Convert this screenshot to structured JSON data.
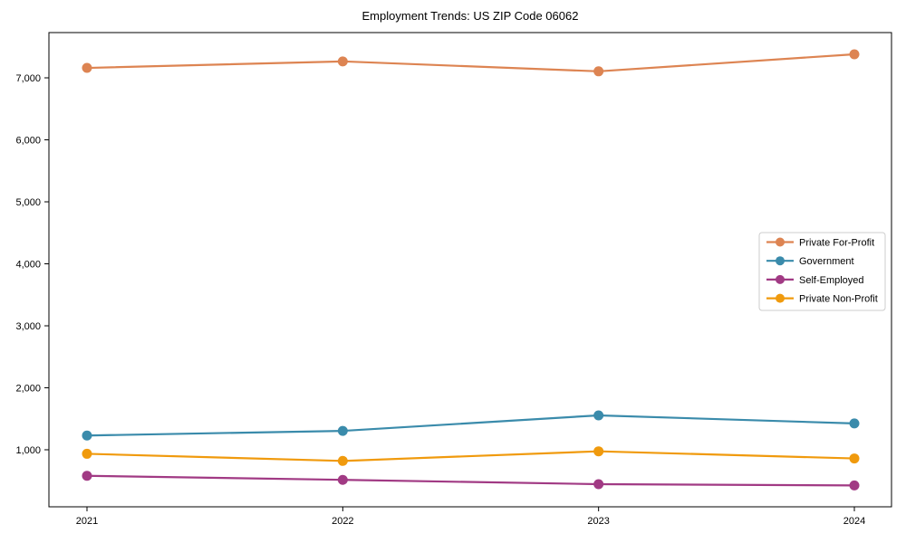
{
  "chart_data": {
    "type": "line",
    "title": "Employment Trends: US ZIP Code 06062",
    "xlabel": "",
    "ylabel": "",
    "categories": [
      "2021",
      "2022",
      "2023",
      "2024"
    ],
    "series": [
      {
        "name": "Private For-Profit",
        "color": "#dd8452",
        "values": [
          7160,
          7265,
          7105,
          7380
        ]
      },
      {
        "name": "Government",
        "color": "#3a8bab",
        "values": [
          1230,
          1305,
          1555,
          1425
        ]
      },
      {
        "name": "Self-Employed",
        "color": "#a13a84",
        "values": [
          580,
          515,
          445,
          425
        ]
      },
      {
        "name": "Private Non-Profit",
        "color": "#f09a0d",
        "values": [
          935,
          820,
          975,
          860
        ]
      }
    ],
    "yticks": [
      1000,
      2000,
      3000,
      4000,
      5000,
      6000,
      7000
    ],
    "ytick_labels": [
      "1,000",
      "2,000",
      "3,000",
      "4,000",
      "5,000",
      "6,000",
      "7,000"
    ],
    "ylim": [
      80,
      7730
    ],
    "grid": false,
    "marker": "circle",
    "legend_position": "right-middle",
    "frame_color": "#000000",
    "tick_label_color": "#000000",
    "legend_border_color": "#cccccc",
    "background_color": "#ffffff"
  }
}
